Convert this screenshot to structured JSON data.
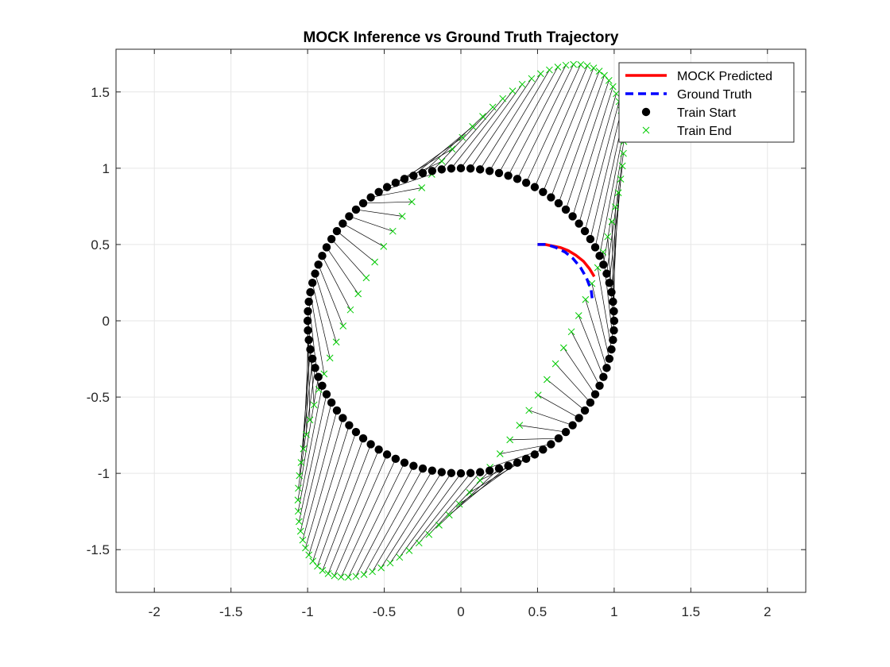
{
  "chart_data": {
    "type": "scatter",
    "title": "MOCK Inference vs Ground Truth Trajectory",
    "xlabel": "",
    "ylabel": "",
    "xlim": [
      -2.25,
      2.25
    ],
    "ylim": [
      -1.78,
      1.78
    ],
    "xticks": [
      -2,
      -1.5,
      -1,
      -0.5,
      0,
      0.5,
      1,
      1.5,
      2
    ],
    "xtick_labels": [
      "-2",
      "-1.5",
      "-1",
      "-0.5",
      "0",
      "0.5",
      "1",
      "1.5",
      "2"
    ],
    "yticks": [
      -1.5,
      -1,
      -0.5,
      0,
      0.5,
      1,
      1.5
    ],
    "ytick_labels": [
      "-1.5",
      "-1",
      "-0.5",
      "0",
      "0.5",
      "1",
      "1.5"
    ],
    "grid": true,
    "legend_position": "top-right",
    "series": [
      {
        "name": "MOCK Predicted",
        "style": "line",
        "color": "#ff0000",
        "x": [
          0.5,
          0.55,
          0.6,
          0.65,
          0.7,
          0.75,
          0.8,
          0.84,
          0.87
        ],
        "y": [
          0.5,
          0.5,
          0.49,
          0.48,
          0.46,
          0.43,
          0.39,
          0.34,
          0.29
        ]
      },
      {
        "name": "Ground Truth",
        "style": "dashed",
        "color": "#0000ff",
        "x": [
          0.5,
          0.56,
          0.62,
          0.68,
          0.73,
          0.78,
          0.82,
          0.85,
          0.86
        ],
        "y": [
          0.5,
          0.5,
          0.48,
          0.45,
          0.41,
          0.35,
          0.28,
          0.2,
          0.12
        ]
      },
      {
        "name": "Train Start",
        "style": "markers-dot",
        "color": "#000000",
        "points": 100,
        "shape": "unit circle",
        "x_center": 0,
        "y_center": 0,
        "radius": 1
      },
      {
        "name": "Train End",
        "style": "markers-x",
        "color": "#00cc00",
        "points": 100,
        "shape": "linear transform of start points",
        "matrix": [
          [
            0.985,
            0.4
          ],
          [
            0.65,
            1.55
          ]
        ]
      }
    ],
    "connectors": {
      "description": "segments from each Train Start point to matching Train End point",
      "color": "#000000"
    }
  }
}
